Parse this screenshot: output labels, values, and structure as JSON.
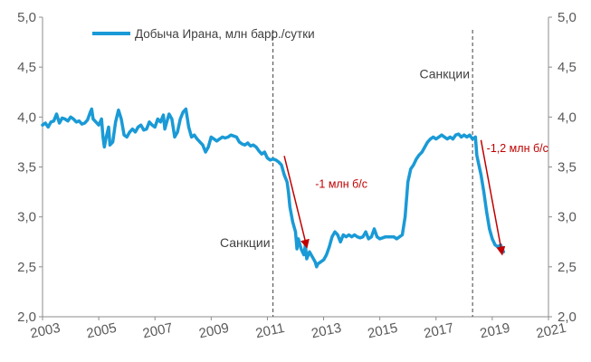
{
  "chart_data": {
    "type": "line",
    "title": "",
    "xlabel": "",
    "ylabel": "",
    "xlim": [
      2003,
      2021
    ],
    "ylim": [
      2.0,
      5.0
    ],
    "x_ticks": [
      "2003",
      "2005",
      "2007",
      "2009",
      "2011",
      "2013",
      "2015",
      "2017",
      "2019",
      "2021"
    ],
    "y_ticks": [
      "2,0",
      "2,5",
      "3,0",
      "3,5",
      "4,0",
      "4,5",
      "5,0"
    ],
    "grid": false,
    "legend_position": "top-left",
    "series": [
      {
        "name": "Добыча Ирана, млн барр./сутки",
        "color": "#1a9ad6",
        "points": [
          [
            2003.0,
            3.92
          ],
          [
            2003.1,
            3.94
          ],
          [
            2003.2,
            3.9
          ],
          [
            2003.3,
            3.95
          ],
          [
            2003.4,
            3.96
          ],
          [
            2003.5,
            4.03
          ],
          [
            2003.6,
            3.94
          ],
          [
            2003.7,
            3.99
          ],
          [
            2003.8,
            3.98
          ],
          [
            2003.9,
            3.96
          ],
          [
            2004.0,
            4.0
          ],
          [
            2004.1,
            3.98
          ],
          [
            2004.2,
            3.95
          ],
          [
            2004.3,
            3.96
          ],
          [
            2004.4,
            3.93
          ],
          [
            2004.5,
            3.94
          ],
          [
            2004.6,
            3.97
          ],
          [
            2004.7,
            4.05
          ],
          [
            2004.75,
            4.08
          ],
          [
            2004.8,
            3.98
          ],
          [
            2004.9,
            3.95
          ],
          [
            2005.0,
            3.92
          ],
          [
            2005.1,
            3.98
          ],
          [
            2005.15,
            3.8
          ],
          [
            2005.2,
            3.7
          ],
          [
            2005.25,
            3.78
          ],
          [
            2005.35,
            3.9
          ],
          [
            2005.4,
            3.72
          ],
          [
            2005.5,
            3.75
          ],
          [
            2005.6,
            3.95
          ],
          [
            2005.7,
            4.07
          ],
          [
            2005.8,
            3.98
          ],
          [
            2005.9,
            3.82
          ],
          [
            2006.0,
            3.8
          ],
          [
            2006.1,
            3.85
          ],
          [
            2006.2,
            3.88
          ],
          [
            2006.3,
            3.85
          ],
          [
            2006.4,
            3.9
          ],
          [
            2006.5,
            3.92
          ],
          [
            2006.6,
            3.87
          ],
          [
            2006.7,
            3.88
          ],
          [
            2006.8,
            3.95
          ],
          [
            2006.9,
            3.92
          ],
          [
            2007.0,
            3.9
          ],
          [
            2007.1,
            3.98
          ],
          [
            2007.2,
            3.95
          ],
          [
            2007.3,
            4.02
          ],
          [
            2007.35,
            3.88
          ],
          [
            2007.4,
            3.93
          ],
          [
            2007.5,
            4.03
          ],
          [
            2007.6,
            3.98
          ],
          [
            2007.7,
            3.8
          ],
          [
            2007.8,
            3.85
          ],
          [
            2007.9,
            3.98
          ],
          [
            2008.0,
            4.05
          ],
          [
            2008.1,
            4.08
          ],
          [
            2008.2,
            3.9
          ],
          [
            2008.3,
            3.8
          ],
          [
            2008.4,
            3.82
          ],
          [
            2008.5,
            3.78
          ],
          [
            2008.6,
            3.75
          ],
          [
            2008.7,
            3.72
          ],
          [
            2008.8,
            3.65
          ],
          [
            2008.9,
            3.7
          ],
          [
            2009.0,
            3.8
          ],
          [
            2009.1,
            3.78
          ],
          [
            2009.2,
            3.76
          ],
          [
            2009.3,
            3.78
          ],
          [
            2009.4,
            3.8
          ],
          [
            2009.5,
            3.79
          ],
          [
            2009.6,
            3.8
          ],
          [
            2009.7,
            3.82
          ],
          [
            2009.8,
            3.81
          ],
          [
            2009.9,
            3.8
          ],
          [
            2010.0,
            3.75
          ],
          [
            2010.1,
            3.73
          ],
          [
            2010.2,
            3.72
          ],
          [
            2010.3,
            3.74
          ],
          [
            2010.4,
            3.71
          ],
          [
            2010.5,
            3.72
          ],
          [
            2010.6,
            3.7
          ],
          [
            2010.7,
            3.66
          ],
          [
            2010.8,
            3.63
          ],
          [
            2010.9,
            3.65
          ],
          [
            2011.0,
            3.59
          ],
          [
            2011.1,
            3.57
          ],
          [
            2011.2,
            3.58
          ],
          [
            2011.3,
            3.57
          ],
          [
            2011.4,
            3.55
          ],
          [
            2011.5,
            3.52
          ],
          [
            2011.6,
            3.42
          ],
          [
            2011.7,
            3.35
          ],
          [
            2011.75,
            3.25
          ],
          [
            2011.8,
            3.1
          ],
          [
            2011.9,
            2.95
          ],
          [
            2012.0,
            2.85
          ],
          [
            2012.05,
            2.68
          ],
          [
            2012.1,
            2.78
          ],
          [
            2012.2,
            2.68
          ],
          [
            2012.3,
            2.62
          ],
          [
            2012.35,
            2.72
          ],
          [
            2012.4,
            2.58
          ],
          [
            2012.5,
            2.65
          ],
          [
            2012.6,
            2.6
          ],
          [
            2012.7,
            2.55
          ],
          [
            2012.75,
            2.5
          ],
          [
            2012.8,
            2.53
          ],
          [
            2012.9,
            2.55
          ],
          [
            2013.0,
            2.57
          ],
          [
            2013.1,
            2.62
          ],
          [
            2013.2,
            2.7
          ],
          [
            2013.3,
            2.8
          ],
          [
            2013.4,
            2.85
          ],
          [
            2013.5,
            2.82
          ],
          [
            2013.6,
            2.75
          ],
          [
            2013.7,
            2.82
          ],
          [
            2013.8,
            2.8
          ],
          [
            2013.9,
            2.82
          ],
          [
            2014.0,
            2.8
          ],
          [
            2014.1,
            2.82
          ],
          [
            2014.2,
            2.8
          ],
          [
            2014.3,
            2.79
          ],
          [
            2014.4,
            2.8
          ],
          [
            2014.5,
            2.85
          ],
          [
            2014.6,
            2.78
          ],
          [
            2014.7,
            2.8
          ],
          [
            2014.8,
            2.88
          ],
          [
            2014.9,
            2.8
          ],
          [
            2015.0,
            2.78
          ],
          [
            2015.1,
            2.79
          ],
          [
            2015.2,
            2.8
          ],
          [
            2015.3,
            2.8
          ],
          [
            2015.4,
            2.8
          ],
          [
            2015.5,
            2.8
          ],
          [
            2015.6,
            2.78
          ],
          [
            2015.7,
            2.8
          ],
          [
            2015.8,
            2.82
          ],
          [
            2015.9,
            3.0
          ],
          [
            2016.0,
            3.35
          ],
          [
            2016.1,
            3.48
          ],
          [
            2016.2,
            3.52
          ],
          [
            2016.3,
            3.58
          ],
          [
            2016.4,
            3.62
          ],
          [
            2016.5,
            3.65
          ],
          [
            2016.6,
            3.7
          ],
          [
            2016.7,
            3.75
          ],
          [
            2016.8,
            3.78
          ],
          [
            2016.9,
            3.8
          ],
          [
            2017.0,
            3.78
          ],
          [
            2017.1,
            3.8
          ],
          [
            2017.2,
            3.82
          ],
          [
            2017.3,
            3.8
          ],
          [
            2017.4,
            3.78
          ],
          [
            2017.5,
            3.8
          ],
          [
            2017.6,
            3.78
          ],
          [
            2017.7,
            3.82
          ],
          [
            2017.8,
            3.83
          ],
          [
            2017.9,
            3.8
          ],
          [
            2018.0,
            3.82
          ],
          [
            2018.1,
            3.8
          ],
          [
            2018.2,
            3.82
          ],
          [
            2018.3,
            3.78
          ],
          [
            2018.4,
            3.8
          ],
          [
            2018.45,
            3.62
          ],
          [
            2018.5,
            3.55
          ],
          [
            2018.6,
            3.42
          ],
          [
            2018.7,
            3.25
          ],
          [
            2018.8,
            3.05
          ],
          [
            2018.9,
            2.88
          ],
          [
            2019.0,
            2.78
          ],
          [
            2019.1,
            2.72
          ],
          [
            2019.2,
            2.7
          ],
          [
            2019.3,
            2.72
          ],
          [
            2019.4,
            2.65
          ]
        ]
      }
    ],
    "vertical_lines": [
      2011.2,
      2018.3
    ],
    "annotations": [
      {
        "text": "Санкции",
        "x": 2011.1,
        "y": 2.7,
        "color": "#404040",
        "anchor": "end"
      },
      {
        "text": "Санкции",
        "x": 2018.2,
        "y": 4.39,
        "color": "#404040",
        "anchor": "end"
      },
      {
        "text": "-1 млн б/с",
        "x": 2012.7,
        "y": 3.29,
        "color": "#c00000",
        "anchor": "start"
      },
      {
        "text": "-1,2 млн б/с",
        "x": 2018.8,
        "y": 3.65,
        "color": "#c00000",
        "anchor": "start"
      }
    ],
    "arrows": [
      {
        "from": [
          2011.6,
          3.61
        ],
        "to": [
          2012.4,
          2.7
        ],
        "color": "#c00000"
      },
      {
        "from": [
          2018.6,
          3.77
        ],
        "to": [
          2019.35,
          2.63
        ],
        "color": "#c00000"
      }
    ]
  }
}
